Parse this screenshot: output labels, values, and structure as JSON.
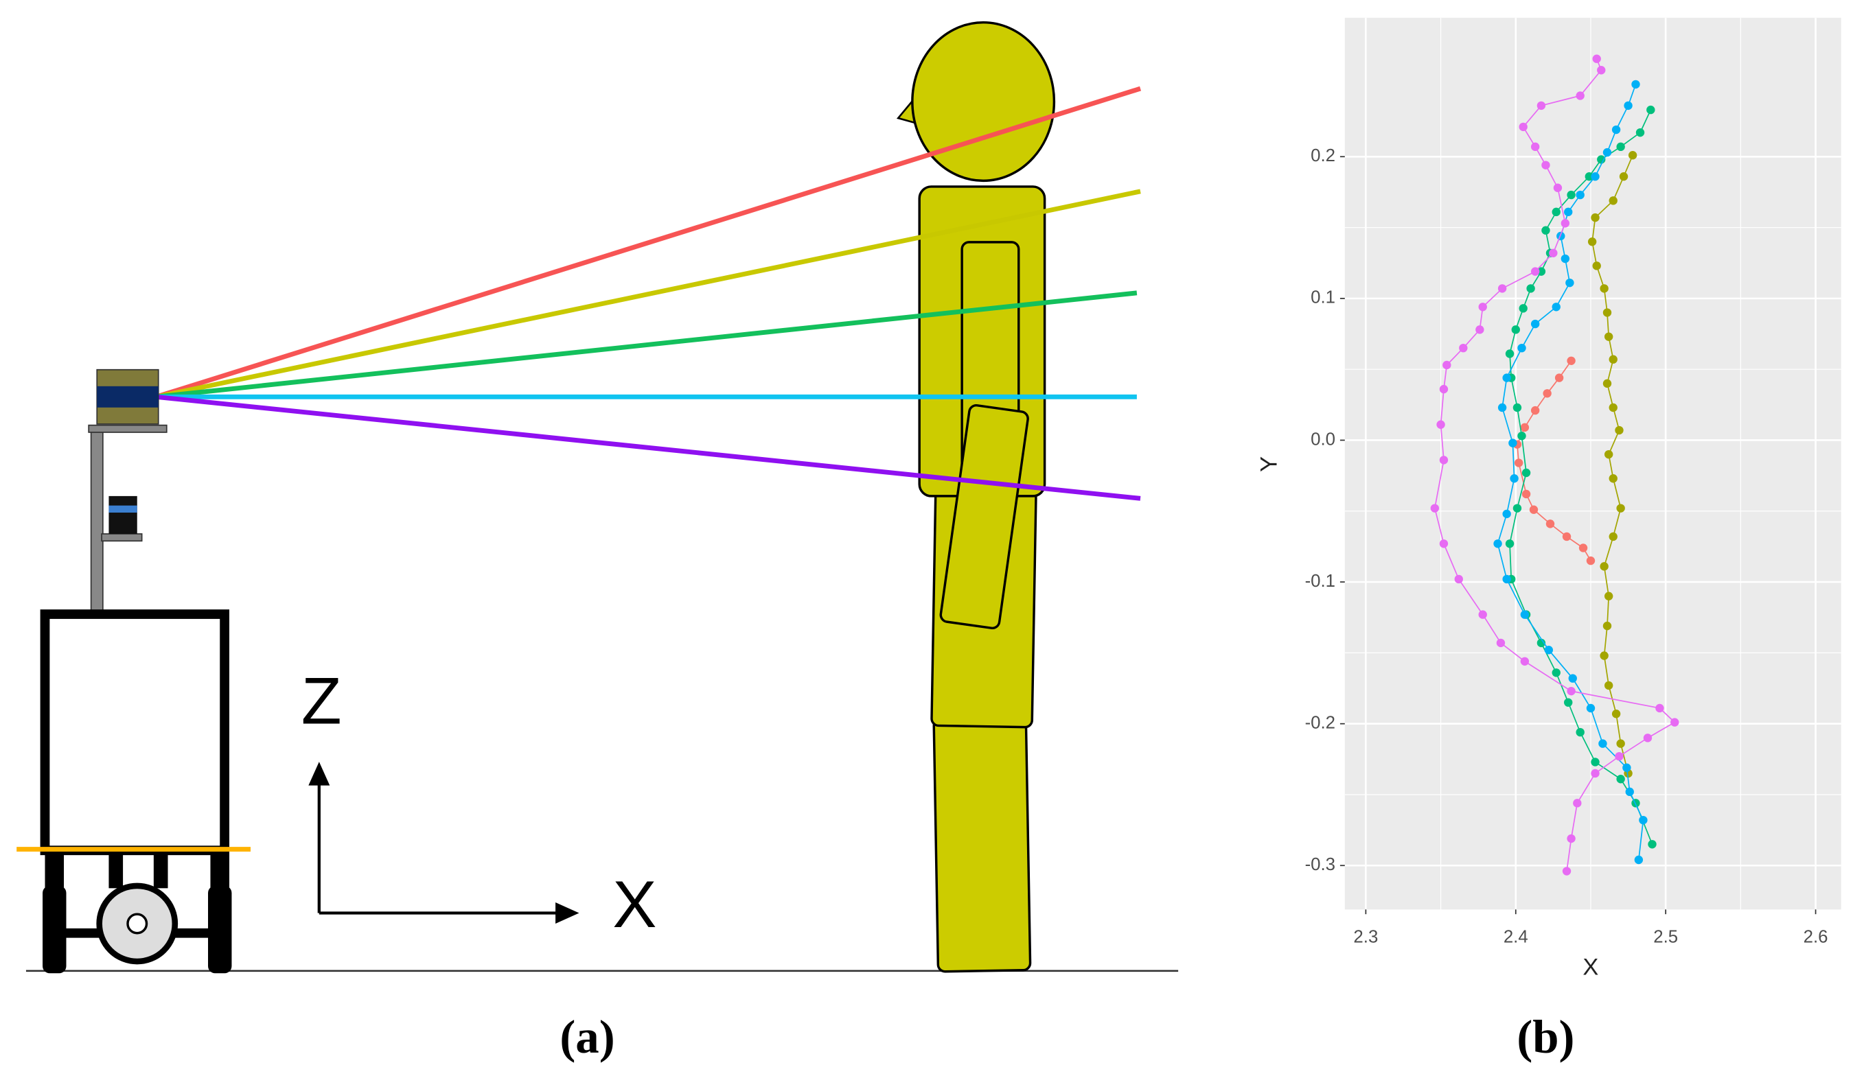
{
  "diagram": {
    "z_label": "Z",
    "x_label": "X",
    "caption": "(a)"
  },
  "chart_data": {
    "type": "line",
    "caption": "(b)",
    "x_label": "X",
    "y_label": "Y",
    "xlim": [
      2.286,
      2.617
    ],
    "ylim": [
      -0.331,
      0.298
    ],
    "xticks": [
      2.3,
      2.4,
      2.5,
      2.6
    ],
    "yticks": [
      -0.3,
      -0.2,
      -0.1,
      {
        "value": 0,
        "label": "0.0"
      },
      0.1,
      0.2
    ],
    "grid": true,
    "series": [
      {
        "color": "#F8766D",
        "x": [
          2.437,
          2.429,
          2.421,
          2.413,
          2.406,
          2.401,
          2.402,
          2.407,
          2.412,
          2.423,
          2.434,
          2.445,
          2.45
        ],
        "values": [
          0.056,
          0.044,
          0.033,
          0.021,
          0.009,
          -0.003,
          -0.016,
          -0.038,
          -0.049,
          -0.059,
          -0.068,
          -0.076,
          -0.085
        ]
      },
      {
        "color": "#A3A500",
        "x": [
          2.478,
          2.472,
          2.465,
          2.453,
          2.451,
          2.454,
          2.459,
          2.461,
          2.462,
          2.465,
          2.461,
          2.465,
          2.469,
          2.462,
          2.465,
          2.47,
          2.465,
          2.459,
          2.462,
          2.461,
          2.459,
          2.462,
          2.467,
          2.47,
          2.475
        ],
        "values": [
          0.201,
          0.186,
          0.169,
          0.157,
          0.14,
          0.123,
          0.107,
          0.09,
          0.073,
          0.057,
          0.04,
          0.023,
          0.007,
          -0.01,
          -0.027,
          -0.048,
          -0.068,
          -0.089,
          -0.11,
          -0.131,
          -0.152,
          -0.173,
          -0.193,
          -0.214,
          -0.235
        ]
      },
      {
        "color": "#00BF7D",
        "x": [
          2.49,
          2.483,
          2.47,
          2.457,
          2.449,
          2.437,
          2.427,
          2.42,
          2.423,
          2.417,
          2.41,
          2.405,
          2.4,
          2.396,
          2.397,
          2.401,
          2.404,
          2.407,
          2.401,
          2.396,
          2.397,
          2.407,
          2.417,
          2.427,
          2.435,
          2.443,
          2.453,
          2.47,
          2.48,
          2.491
        ],
        "values": [
          0.233,
          0.217,
          0.207,
          0.198,
          0.186,
          0.173,
          0.161,
          0.148,
          0.132,
          0.119,
          0.107,
          0.093,
          0.078,
          0.061,
          0.044,
          0.023,
          0.003,
          -0.023,
          -0.048,
          -0.073,
          -0.098,
          -0.123,
          -0.143,
          -0.164,
          -0.185,
          -0.206,
          -0.227,
          -0.239,
          -0.256,
          -0.285
        ]
      },
      {
        "color": "#00B0F6",
        "x": [
          2.48,
          2.475,
          2.467,
          2.461,
          2.453,
          2.443,
          2.435,
          2.43,
          2.433,
          2.436,
          2.427,
          2.413,
          2.404,
          2.394,
          2.391,
          2.398,
          2.399,
          2.394,
          2.388,
          2.394,
          2.406,
          2.422,
          2.438,
          2.45,
          2.458,
          2.474,
          2.476,
          2.485,
          2.482
        ],
        "values": [
          0.251,
          0.236,
          0.219,
          0.203,
          0.186,
          0.173,
          0.161,
          0.144,
          0.128,
          0.111,
          0.094,
          0.082,
          0.065,
          0.044,
          0.023,
          -0.002,
          -0.027,
          -0.052,
          -0.073,
          -0.098,
          -0.123,
          -0.148,
          -0.168,
          -0.189,
          -0.214,
          -0.231,
          -0.248,
          -0.268,
          -0.296
        ]
      },
      {
        "color": "#E76BF3",
        "x": [
          2.454,
          2.457,
          2.443,
          2.417,
          2.405,
          2.413,
          2.42,
          2.428,
          2.433,
          2.425,
          2.413,
          2.391,
          2.378,
          2.376,
          2.365,
          2.354,
          2.352,
          2.35,
          2.352,
          2.346,
          2.352,
          2.362,
          2.378,
          2.39,
          2.406,
          2.437,
          2.496,
          2.506,
          2.488,
          2.469,
          2.453,
          2.441,
          2.437,
          2.434
        ],
        "values": [
          0.269,
          0.261,
          0.243,
          0.236,
          0.221,
          0.207,
          0.194,
          0.178,
          0.153,
          0.132,
          0.119,
          0.107,
          0.094,
          0.078,
          0.065,
          0.053,
          0.036,
          0.011,
          -0.014,
          -0.048,
          -0.073,
          -0.098,
          -0.123,
          -0.143,
          -0.156,
          -0.177,
          -0.189,
          -0.199,
          -0.21,
          -0.223,
          -0.235,
          -0.256,
          -0.281,
          -0.304
        ]
      }
    ]
  }
}
